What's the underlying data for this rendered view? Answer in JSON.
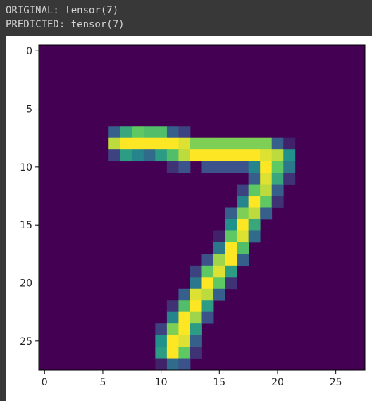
{
  "output": {
    "original_line": "ORIGINAL: tensor(7)",
    "predicted_line": "PREDICTED: tensor(7)"
  },
  "colors": {
    "notebook_bg": "#383838",
    "output_text": "#d4d4d4",
    "figure_bg": "#ffffff",
    "colormap": [
      "#440154",
      "#3b528b",
      "#21918c",
      "#5ec962",
      "#fde725"
    ]
  },
  "chart_data": {
    "type": "heatmap",
    "title": "",
    "xlabel": "",
    "ylabel": "",
    "colormap": "viridis",
    "vmin": 0,
    "vmax": 1,
    "xlim": [
      -0.5,
      27.5
    ],
    "ylim": [
      27.5,
      -0.5
    ],
    "x_ticks": [
      0,
      5,
      10,
      15,
      20,
      25
    ],
    "y_ticks": [
      0,
      5,
      10,
      15,
      20,
      25
    ],
    "x_tick_labels": [
      "0",
      "5",
      "10",
      "15",
      "20",
      "25"
    ],
    "y_tick_labels": [
      "0",
      "5",
      "10",
      "15",
      "20",
      "25"
    ],
    "grid": false,
    "background_value": 0,
    "nonzero_pixels": [
      [
        7,
        6,
        0.3
      ],
      [
        7,
        7,
        0.6
      ],
      [
        7,
        8,
        0.75
      ],
      [
        7,
        9,
        0.7
      ],
      [
        7,
        10,
        0.7
      ],
      [
        7,
        11,
        0.3
      ],
      [
        7,
        12,
        0.2
      ],
      [
        8,
        6,
        0.9
      ],
      [
        8,
        7,
        1
      ],
      [
        8,
        8,
        1
      ],
      [
        8,
        9,
        1
      ],
      [
        8,
        10,
        1
      ],
      [
        8,
        11,
        1
      ],
      [
        8,
        12,
        0.95
      ],
      [
        8,
        13,
        0.8
      ],
      [
        8,
        14,
        0.8
      ],
      [
        8,
        15,
        0.8
      ],
      [
        8,
        16,
        0.8
      ],
      [
        8,
        17,
        0.8
      ],
      [
        8,
        18,
        0.8
      ],
      [
        8,
        19,
        0.8
      ],
      [
        8,
        20,
        0.3
      ],
      [
        8,
        21,
        0.1
      ],
      [
        9,
        6,
        0.2
      ],
      [
        9,
        7,
        0.55
      ],
      [
        9,
        8,
        0.45
      ],
      [
        9,
        9,
        0.35
      ],
      [
        9,
        10,
        0.55
      ],
      [
        9,
        11,
        0.7
      ],
      [
        9,
        12,
        0.9
      ],
      [
        9,
        13,
        1
      ],
      [
        9,
        14,
        1
      ],
      [
        9,
        15,
        1
      ],
      [
        9,
        16,
        1
      ],
      [
        9,
        17,
        1
      ],
      [
        9,
        18,
        1
      ],
      [
        9,
        19,
        0.95
      ],
      [
        9,
        20,
        0.9
      ],
      [
        9,
        21,
        0.5
      ],
      [
        10,
        11,
        0.15
      ],
      [
        10,
        12,
        0.25
      ],
      [
        10,
        14,
        0.25
      ],
      [
        10,
        15,
        0.25
      ],
      [
        10,
        16,
        0.25
      ],
      [
        10,
        17,
        0.25
      ],
      [
        10,
        18,
        0.45
      ],
      [
        10,
        19,
        1
      ],
      [
        10,
        20,
        0.75
      ],
      [
        10,
        21,
        0.4
      ],
      [
        11,
        18,
        0.3
      ],
      [
        11,
        19,
        0.95
      ],
      [
        11,
        20,
        0.6
      ],
      [
        11,
        21,
        0.15
      ],
      [
        12,
        17,
        0.2
      ],
      [
        12,
        18,
        0.75
      ],
      [
        12,
        19,
        0.9
      ],
      [
        12,
        20,
        0.3
      ],
      [
        13,
        17,
        0.45
      ],
      [
        13,
        18,
        1
      ],
      [
        13,
        19,
        0.75
      ],
      [
        13,
        20,
        0.15
      ],
      [
        14,
        16,
        0.3
      ],
      [
        14,
        17,
        0.8
      ],
      [
        14,
        18,
        0.9
      ],
      [
        14,
        19,
        0.3
      ],
      [
        15,
        16,
        0.5
      ],
      [
        15,
        17,
        1
      ],
      [
        15,
        18,
        0.6
      ],
      [
        16,
        15,
        0.1
      ],
      [
        16,
        16,
        0.75
      ],
      [
        16,
        17,
        0.95
      ],
      [
        16,
        18,
        0.35
      ],
      [
        17,
        15,
        0.4
      ],
      [
        17,
        16,
        1
      ],
      [
        17,
        17,
        0.7
      ],
      [
        18,
        14,
        0.25
      ],
      [
        18,
        15,
        0.85
      ],
      [
        18,
        16,
        1
      ],
      [
        18,
        17,
        0.3
      ],
      [
        19,
        13,
        0.2
      ],
      [
        19,
        14,
        0.75
      ],
      [
        19,
        15,
        0.95
      ],
      [
        19,
        16,
        0.55
      ],
      [
        20,
        13,
        0.4
      ],
      [
        20,
        14,
        1
      ],
      [
        20,
        15,
        0.75
      ],
      [
        20,
        16,
        0.15
      ],
      [
        21,
        12,
        0.3
      ],
      [
        21,
        13,
        0.95
      ],
      [
        21,
        14,
        0.9
      ],
      [
        21,
        15,
        0.3
      ],
      [
        22,
        11,
        0.15
      ],
      [
        22,
        12,
        0.7
      ],
      [
        22,
        13,
        1
      ],
      [
        22,
        14,
        0.55
      ],
      [
        23,
        11,
        0.45
      ],
      [
        23,
        12,
        1
      ],
      [
        23,
        13,
        0.85
      ],
      [
        23,
        14,
        0.25
      ],
      [
        24,
        10,
        0.2
      ],
      [
        24,
        11,
        0.8
      ],
      [
        24,
        12,
        1
      ],
      [
        24,
        13,
        0.55
      ],
      [
        25,
        10,
        0.5
      ],
      [
        25,
        11,
        1
      ],
      [
        25,
        12,
        0.95
      ],
      [
        25,
        13,
        0.3
      ],
      [
        26,
        10,
        0.55
      ],
      [
        26,
        11,
        1
      ],
      [
        26,
        12,
        0.75
      ],
      [
        26,
        13,
        0.15
      ],
      [
        27,
        10,
        0.1
      ],
      [
        27,
        11,
        0.35
      ],
      [
        27,
        12,
        0.25
      ]
    ]
  }
}
